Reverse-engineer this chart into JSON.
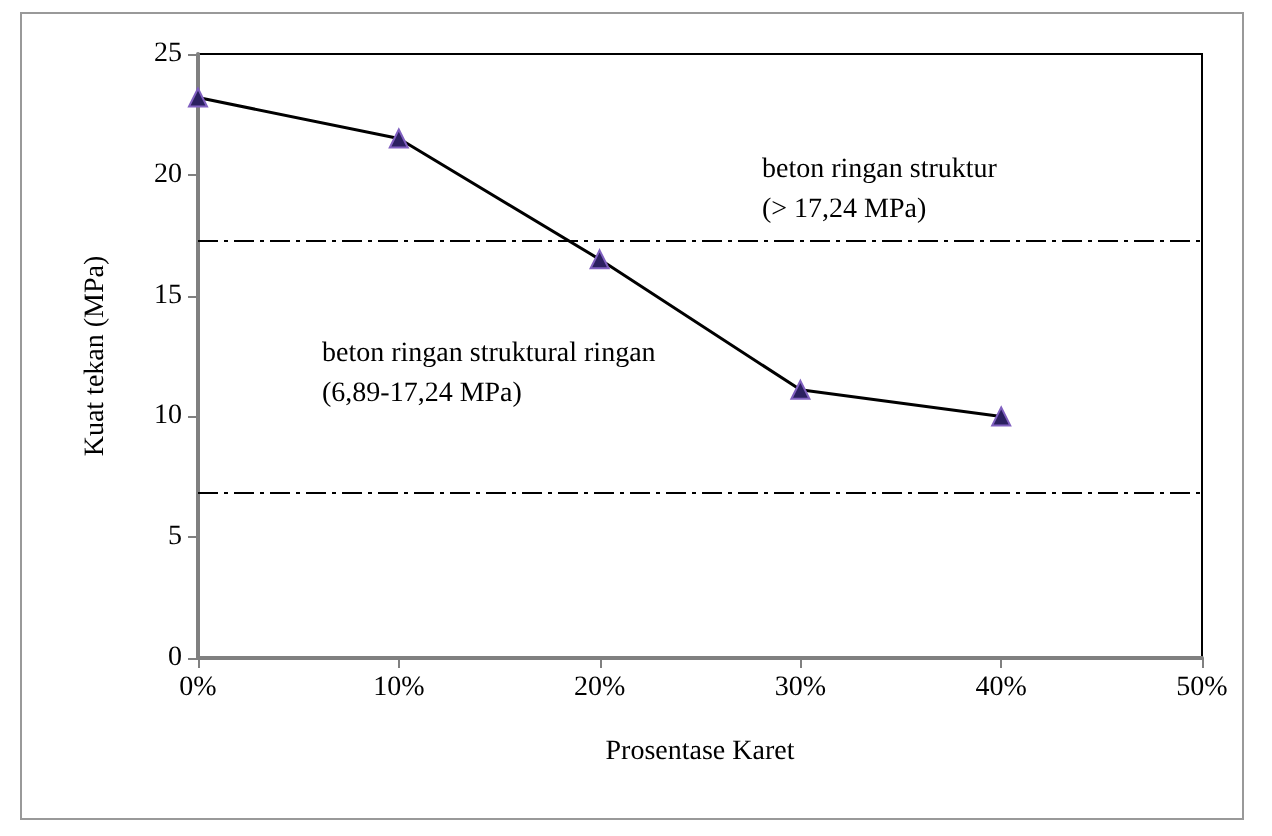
{
  "chart_data": {
    "type": "line",
    "xlabel": "Prosentase Karet",
    "ylabel": "Kuat tekan (MPa)",
    "x": [
      0,
      10,
      20,
      30,
      40
    ],
    "series": [
      {
        "color": "#2b2060",
        "values": [
          23.2,
          21.5,
          16.5,
          11.1,
          10.0
        ]
      }
    ],
    "xlim": [
      0,
      50
    ],
    "xticks": [
      {
        "value": 0,
        "label": "0%"
      },
      {
        "value": 10,
        "label": "10%"
      },
      {
        "value": 20,
        "label": "20%"
      },
      {
        "value": 30,
        "label": "30%"
      },
      {
        "value": 40,
        "label": "40%"
      },
      {
        "value": 50,
        "label": "50%"
      }
    ],
    "ylim": [
      0,
      25
    ],
    "yticks": [
      0,
      5,
      10,
      15,
      20,
      25
    ],
    "ref_lines": [
      {
        "axis": "y",
        "value": 17.24,
        "color": "#000000",
        "line_style": "dashed"
      },
      {
        "axis": "y",
        "value": 6.89,
        "color": "#000000",
        "line_style": "dashed"
      }
    ],
    "annotations": [
      "beton ringan struktur\n(> 17,24 MPa)",
      "beton ringan struktural ringan\n(6,89-17,24 MPa)"
    ],
    "marker": "triangle",
    "line_style": "solid"
  }
}
